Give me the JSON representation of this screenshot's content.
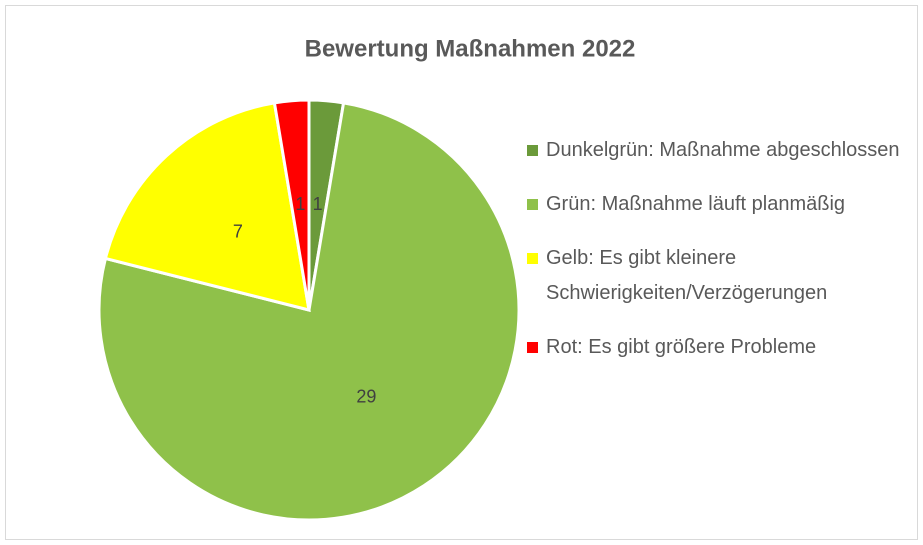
{
  "chart_data": {
    "type": "pie",
    "title": "Bewertung Maßnahmen 2022",
    "categories": [
      "Dunkelgrün: Maßnahme abgeschlossen",
      "Grün: Maßnahme läuft planmäßig",
      "Gelb: Es gibt kleinere Schwierigkeiten/Verzögerungen",
      "Rot: Es gibt größere Probleme"
    ],
    "values": [
      1,
      29,
      7,
      1
    ],
    "colors": [
      "#6b9a3a",
      "#8fc14a",
      "#ffff00",
      "#ff0000"
    ]
  }
}
